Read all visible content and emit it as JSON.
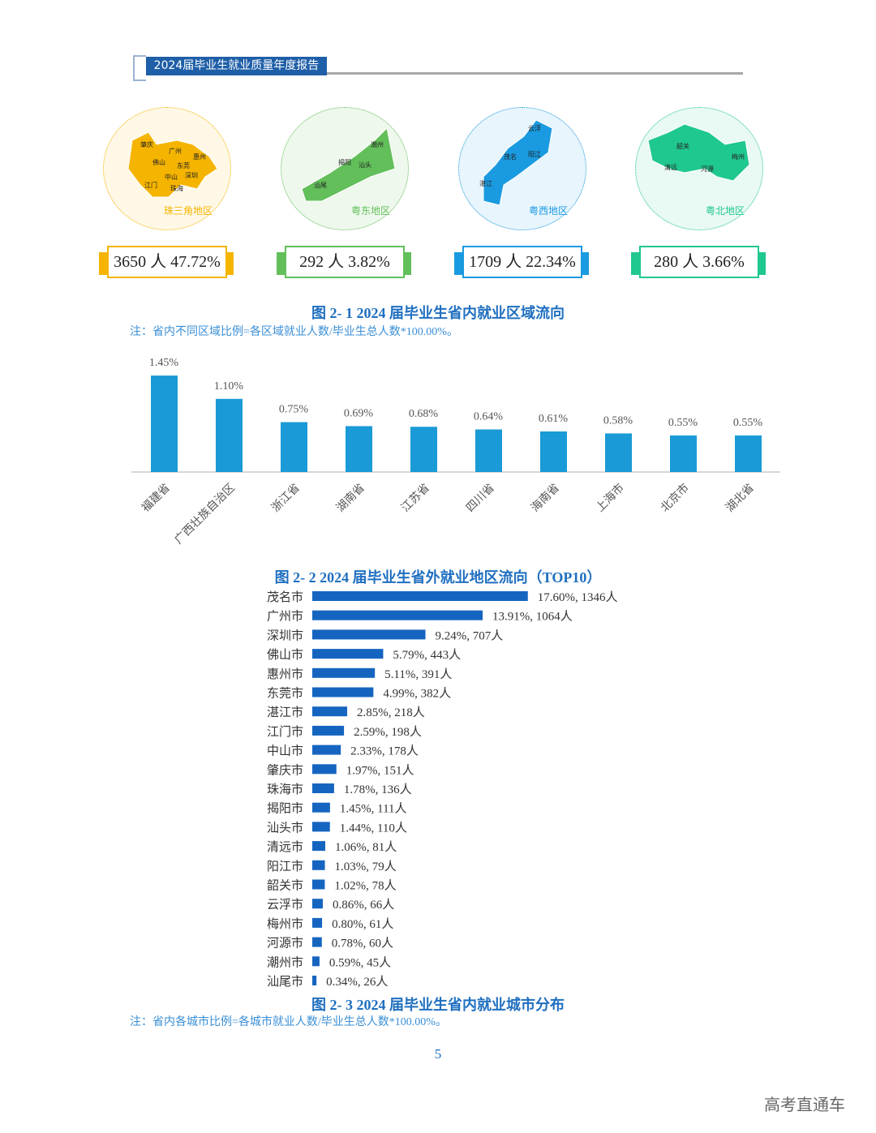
{
  "header": {
    "title": "2024届毕业生就业质量年度报告"
  },
  "regions": [
    {
      "name": "珠三角地区",
      "value": "3650 人 47.72%",
      "color": "#f5b400",
      "bg": "#fff8e6",
      "cities": [
        "肇庆",
        "广州",
        "惠州",
        "佛山",
        "东莞",
        "中山",
        "深圳",
        "江门",
        "珠海"
      ]
    },
    {
      "name": "粤东地区",
      "value": "292 人 3.82%",
      "color": "#62bf5a",
      "bg": "#eef8ec",
      "cities": [
        "潮州",
        "揭阳",
        "汕头",
        "汕尾"
      ]
    },
    {
      "name": "粤西地区",
      "value": "1709 人 22.34%",
      "color": "#1a9ae0",
      "bg": "#e8f5fc",
      "cities": [
        "云浮",
        "茂名",
        "阳江",
        "湛江"
      ]
    },
    {
      "name": "粤北地区",
      "value": "280 人 3.66%",
      "color": "#1fc88e",
      "bg": "#e9f9f3",
      "cities": [
        "韶关",
        "梅州",
        "清远",
        "河源"
      ]
    }
  ],
  "fig1": {
    "caption": "图 2- 1  2024 届毕业生省内就业区域流向",
    "note": "注：省内不同区域比例=各区域就业人数/毕业生总人数*100.00%。"
  },
  "chart_data": [
    {
      "type": "bar",
      "title": "图 2- 2  2024 届毕业生省外就业地区流向（TOP10）",
      "categories": [
        "福建省",
        "广西壮族自治区",
        "浙江省",
        "湖南省",
        "江苏省",
        "四川省",
        "海南省",
        "上海市",
        "北京市",
        "湖北省"
      ],
      "values": [
        1.45,
        1.1,
        0.75,
        0.69,
        0.68,
        0.64,
        0.61,
        0.58,
        0.55,
        0.55
      ],
      "labels": [
        "1.45%",
        "1.10%",
        "0.75%",
        "0.69%",
        "0.68%",
        "0.64%",
        "0.61%",
        "0.58%",
        "0.55%",
        "0.55%"
      ],
      "unit": "%",
      "color": "#1a9ad6",
      "grid": false
    },
    {
      "type": "bar",
      "orientation": "horizontal",
      "title": "图 2- 3  2024 届毕业生省内就业城市分布",
      "note": "注：省内各城市比例=各城市就业人数/毕业生总人数*100.00%。",
      "categories": [
        "茂名市",
        "广州市",
        "深圳市",
        "佛山市",
        "惠州市",
        "东莞市",
        "湛江市",
        "江门市",
        "中山市",
        "肇庆市",
        "珠海市",
        "揭阳市",
        "汕头市",
        "清远市",
        "阳江市",
        "韶关市",
        "云浮市",
        "梅州市",
        "河源市",
        "潮州市",
        "汕尾市"
      ],
      "values": [
        17.6,
        13.91,
        9.24,
        5.79,
        5.11,
        4.99,
        2.85,
        2.59,
        2.33,
        1.97,
        1.78,
        1.45,
        1.44,
        1.06,
        1.03,
        1.02,
        0.86,
        0.8,
        0.78,
        0.59,
        0.34
      ],
      "counts": [
        1346,
        1064,
        707,
        443,
        391,
        382,
        218,
        198,
        178,
        151,
        136,
        111,
        110,
        81,
        79,
        78,
        66,
        61,
        60,
        45,
        26
      ],
      "labels": [
        "17.60%, 1346人",
        "13.91%, 1064人",
        "9.24%, 707人",
        "5.79%, 443人",
        "5.11%, 391人",
        "4.99%, 382人",
        "2.85%, 218人",
        "2.59%, 198人",
        "2.33%, 178人",
        "1.97%, 151人",
        "1.78%, 136人",
        "1.45%, 111人",
        "1.44%, 110人",
        "1.06%, 81人",
        "1.03%, 79人",
        "1.02%, 78人",
        "0.86%, 66人",
        "0.80%, 61人",
        "0.78%, 60人",
        "0.59%, 45人",
        "0.34%, 26人"
      ],
      "unit": "%",
      "color": "#1565c0",
      "grid": false
    }
  ],
  "page_number": "5",
  "watermark": "高考直通车"
}
